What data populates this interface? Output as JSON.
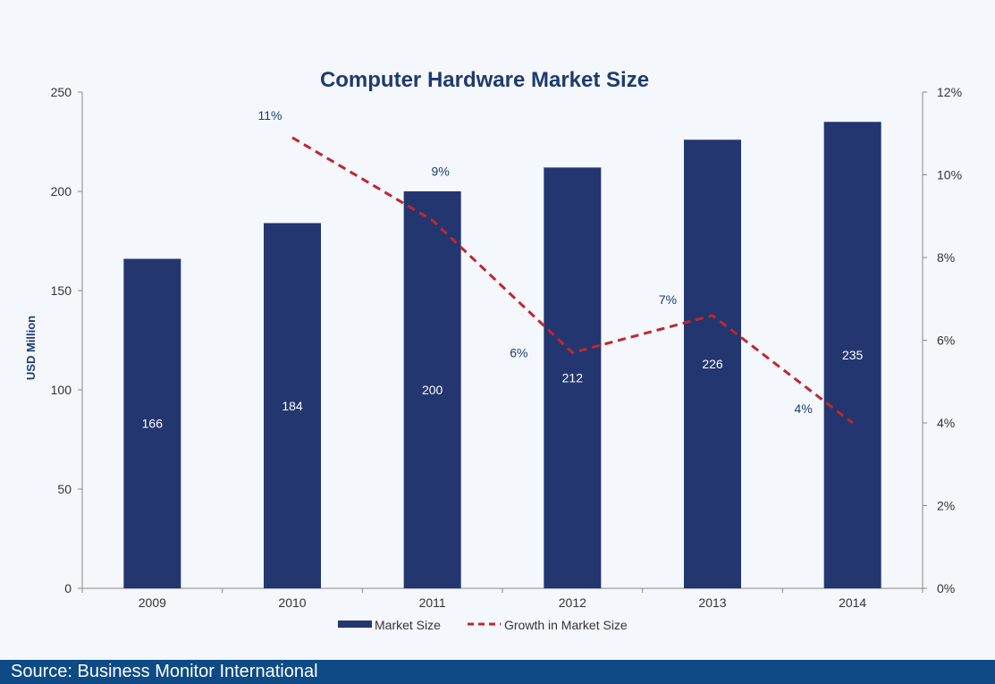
{
  "chart_data": {
    "type": "bar",
    "title": "Computer Hardware Market Size",
    "ylabel": "USD Million",
    "categories": [
      "2009",
      "2010",
      "2011",
      "2012",
      "2013",
      "2014"
    ],
    "series": [
      {
        "name": "Market Size",
        "kind": "bar",
        "axis": "left",
        "values": [
          166,
          184,
          200,
          212,
          226,
          235
        ],
        "labels": [
          "166",
          "184",
          "200",
          "212",
          "226",
          "235"
        ],
        "color": "#23366f"
      },
      {
        "name": "Growth in Market Size",
        "kind": "line",
        "style": "dashed",
        "axis": "right",
        "values": [
          null,
          0.109,
          0.089,
          0.057,
          0.066,
          0.04
        ],
        "labels": [
          "",
          "11%",
          "9%",
          "6%",
          "7%",
          "4%"
        ],
        "color": "#c0272d"
      }
    ],
    "y_left": {
      "ylim": [
        0,
        250
      ],
      "ticks": [
        "0",
        "50",
        "100",
        "150",
        "200",
        "250"
      ]
    },
    "y_right": {
      "ylim": [
        0,
        0.12
      ],
      "ticks": [
        "0%",
        "2%",
        "4%",
        "6%",
        "8%",
        "10%",
        "12%"
      ]
    },
    "legend": {
      "placement": "bottom",
      "items": [
        "Market Size",
        "Growth in Market Size"
      ]
    },
    "grid": false,
    "colors": {
      "title": "#1f3a70",
      "axis_label": "#1f3a70",
      "axis": "#888888",
      "pct_label": "#1f3a70"
    }
  },
  "footer": {
    "source": "Source: Business Monitor International",
    "background": "#0d4a86"
  }
}
